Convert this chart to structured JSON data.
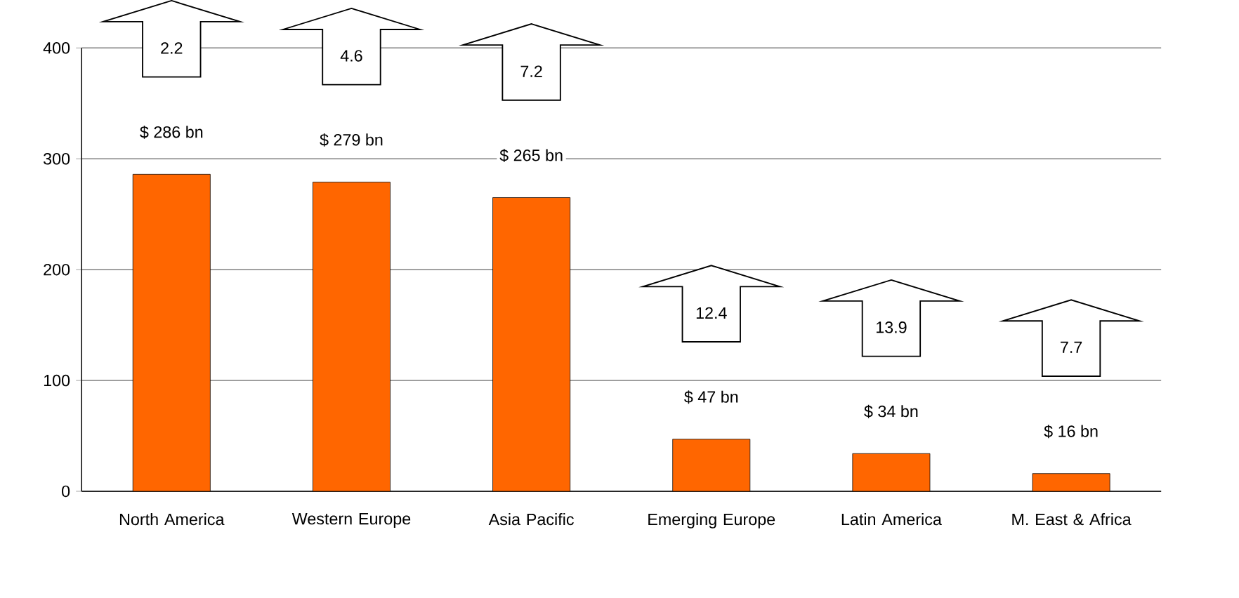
{
  "chart_data": {
    "type": "bar",
    "categories": [
      "North America",
      "Western Europe",
      "Asia Pacific",
      "Emerging Europe",
      "Latin America",
      "M. East & Africa"
    ],
    "values": [
      286,
      279,
      265,
      47,
      34,
      16
    ],
    "value_labels": [
      "$ 286 bn",
      "$ 279 bn",
      "$ 265 bn",
      "$ 47 bn",
      "$ 34 bn",
      "$ 16 bn"
    ],
    "color": "#ff6600",
    "ylim": [
      0,
      400
    ],
    "yticks": [
      0,
      100,
      200,
      300,
      400
    ],
    "grid": "y",
    "annotations": [
      "2.2",
      "4.6",
      "7.2",
      "12.4",
      "13.9",
      "7.7"
    ]
  }
}
